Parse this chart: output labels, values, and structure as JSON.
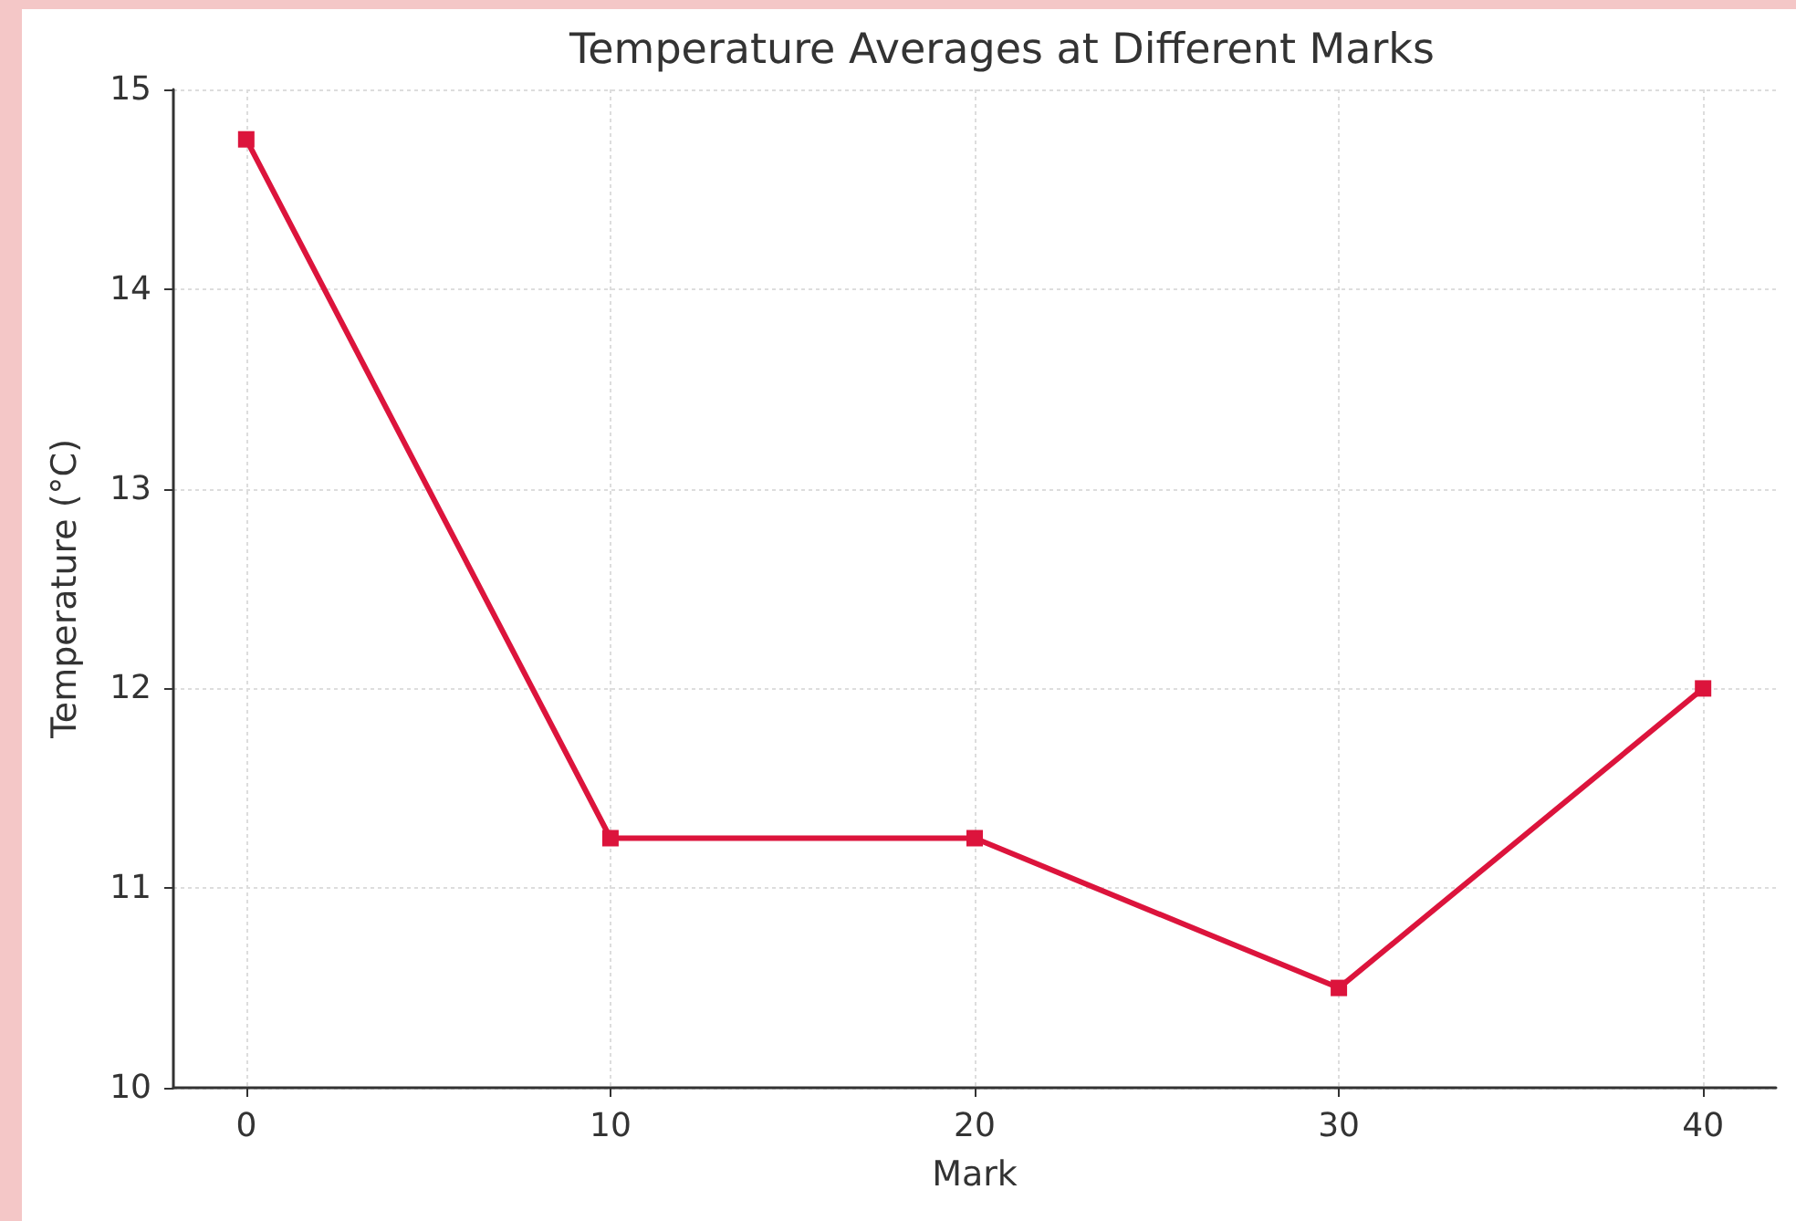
{
  "chart_data": {
    "type": "line",
    "title": "Temperature Averages at Different Marks",
    "xlabel": "Mark",
    "ylabel": "Temperature (°C)",
    "x": [
      0,
      10,
      20,
      30,
      40
    ],
    "series": [
      {
        "color": "#dc143c",
        "values": [
          14.75,
          11.25,
          11.25,
          10.5,
          12
        ]
      }
    ],
    "xlim": [
      -2,
      42
    ],
    "xticks": [
      0,
      10,
      20,
      30,
      40
    ],
    "ylim": [
      10,
      15
    ],
    "yticks": [
      10,
      11,
      12,
      13,
      14,
      15
    ],
    "grid": true,
    "marker": "square",
    "line_style": "solid"
  }
}
